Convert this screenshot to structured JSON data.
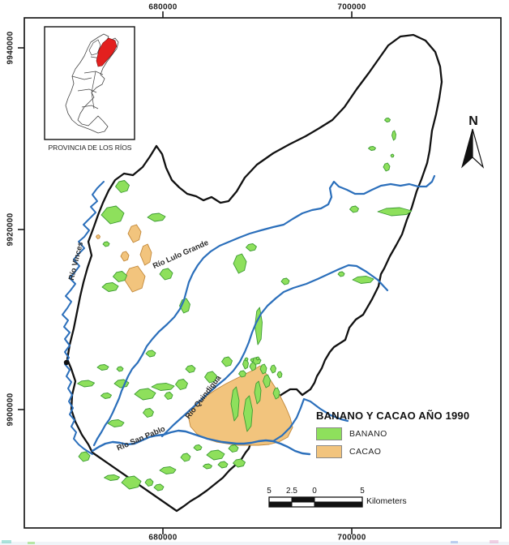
{
  "colors": {
    "banana": "#8ee05c",
    "banana_border": "#3d9b33",
    "cacao": "#f2c47d",
    "cacao_border": "#c2883a",
    "river": "#2b6fbb",
    "boundary": "#111111",
    "red_canton": "#e3201f",
    "frame": "#1a1a1a"
  },
  "frame_coords": {
    "top": [
      "680000",
      "700000"
    ],
    "left": [
      "9940000",
      "9920000",
      "9900000"
    ],
    "bottom": [
      "680000",
      "700000"
    ]
  },
  "rivers": {
    "vinces": "Río Vinces",
    "lulo": "Río Lulo Grande",
    "quindigua": "Río Quindigua",
    "san_pablo": "Río San Pablo"
  },
  "inset": {
    "caption": "PROVINCIA DE LOS RÍOS"
  },
  "north": {
    "label": "N"
  },
  "legend": {
    "title": "BANANO Y CACAO AÑO 1990",
    "items": [
      {
        "label": "BANANO"
      },
      {
        "label": "CACAO"
      }
    ]
  },
  "scalebar": {
    "labels": [
      "5",
      "2.5",
      "0",
      "5"
    ],
    "unit": "Kilometers"
  }
}
